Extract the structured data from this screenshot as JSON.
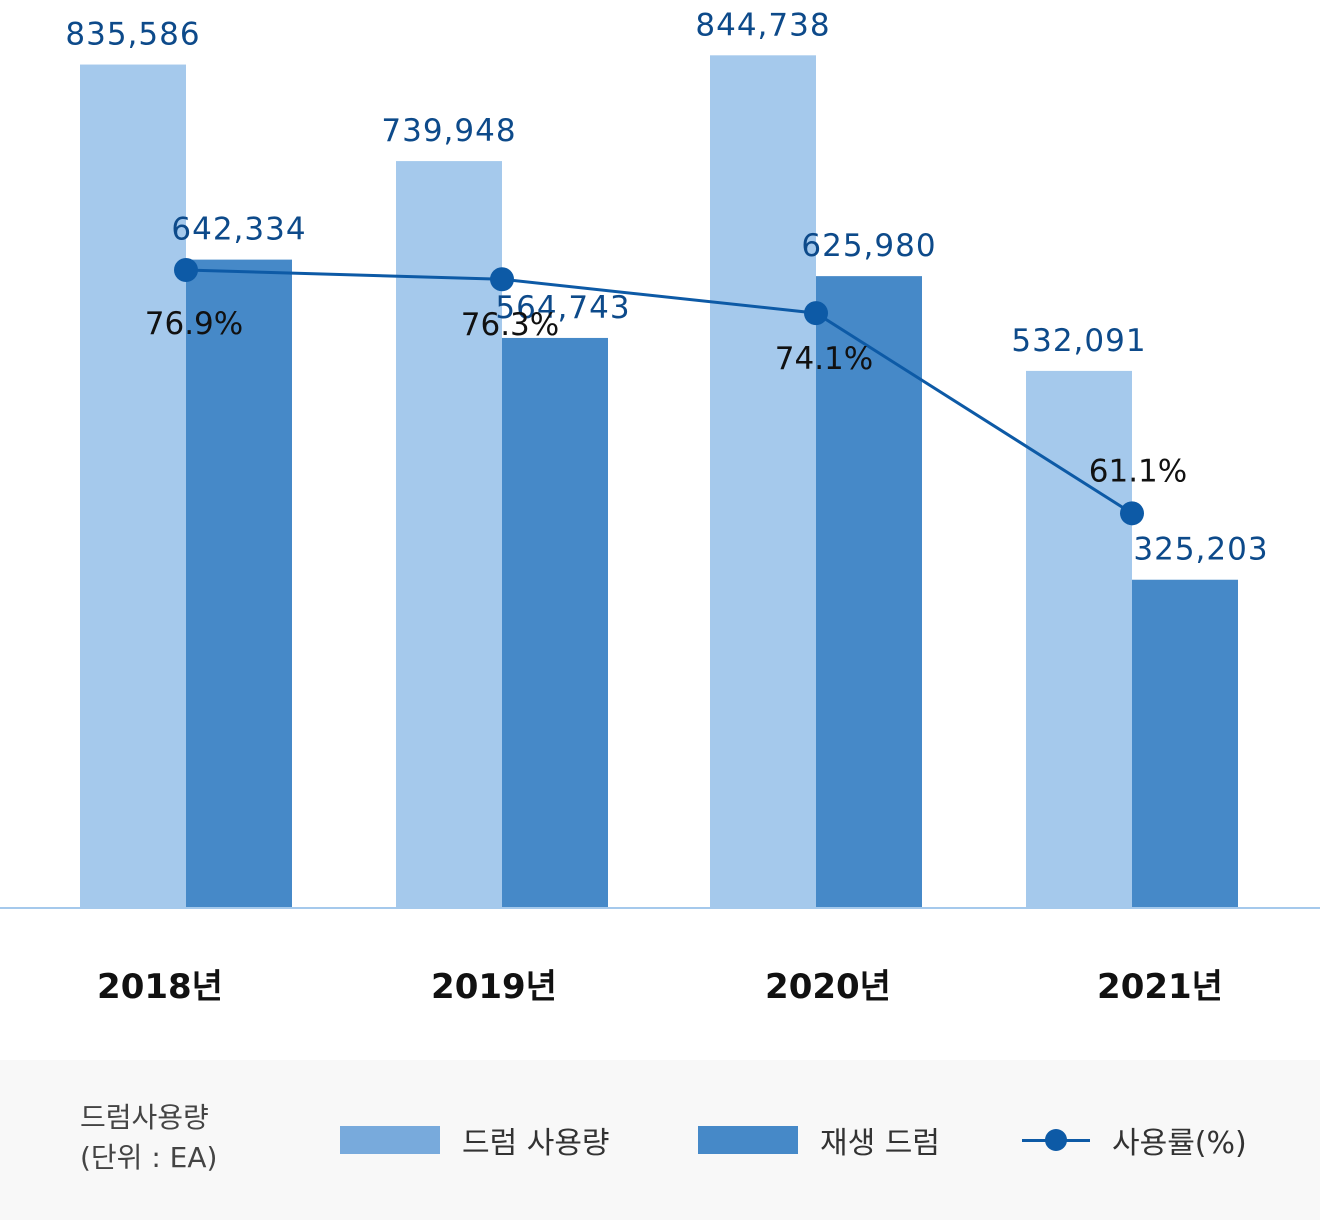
{
  "chart_data": {
    "type": "bar",
    "categories": [
      "2018년",
      "2019년",
      "2020년",
      "2021년"
    ],
    "series": [
      {
        "name": "드럼 사용량",
        "kind": "bar",
        "color": "#a5c9ec",
        "values": [
          835586,
          739948,
          844738,
          532091
        ],
        "labels": [
          "835,586",
          "739,948",
          "844,738",
          "532,091"
        ]
      },
      {
        "name": "재생 드럼",
        "kind": "bar",
        "color": "#4689c8",
        "values": [
          642334,
          564743,
          625980,
          325203
        ],
        "labels": [
          "642,334",
          "564,743",
          "625,980",
          "325,203"
        ]
      },
      {
        "name": "사용률(%)",
        "kind": "line",
        "color": "#0d5aa6",
        "values": [
          76.9,
          76.3,
          74.1,
          61.1
        ],
        "labels": [
          "76.9%",
          "76.3%",
          "74.1%",
          "61.1%"
        ]
      }
    ],
    "ylim": [
      0,
      850000
    ],
    "line_ylim": [
      0,
      100
    ],
    "grid": false,
    "legend_position": "bottom"
  },
  "legend": {
    "unit_line1": "드럼사용량",
    "unit_line2": "(단위 : EA)",
    "items": [
      {
        "label": "드럼 사용량",
        "color": "#78aadc"
      },
      {
        "label": "재생 드럼",
        "color": "#4689c8"
      },
      {
        "label": "사용률(%)",
        "color": "#0d5aa6"
      }
    ]
  },
  "colors": {
    "value_label": "#0d4a8a",
    "rate_label": "#111111",
    "axis": "#a5c9ec"
  }
}
